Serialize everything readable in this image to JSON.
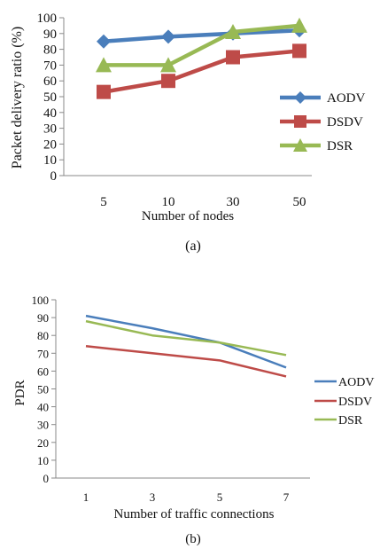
{
  "charts": [
    {
      "caption": "(a)",
      "chart_data": {
        "type": "line",
        "categories": [
          "5",
          "10",
          "30",
          "50"
        ],
        "series": [
          {
            "name": "AODV",
            "values": [
              85,
              88,
              90,
              92
            ],
            "color": "#4a7ebb",
            "marker": "diamond"
          },
          {
            "name": "DSDV",
            "values": [
              53,
              60,
              75,
              79
            ],
            "color": "#be4b48",
            "marker": "square"
          },
          {
            "name": "DSR",
            "values": [
              70,
              70,
              91,
              95
            ],
            "color": "#98b954",
            "marker": "triangle"
          }
        ],
        "title": "",
        "xlabel": "Number of nodes",
        "ylabel": "Packet delivery ratio (%)",
        "ylim": [
          0,
          100
        ],
        "yticks": [
          "0",
          "10",
          "20",
          "30",
          "40",
          "50",
          "60",
          "70",
          "80",
          "90",
          "100"
        ],
        "grid": false,
        "legend": "right"
      }
    },
    {
      "caption": "(b)",
      "chart_data": {
        "type": "line",
        "categories": [
          "1",
          "3",
          "5",
          "7"
        ],
        "series": [
          {
            "name": "AODV",
            "values": [
              91,
              84,
              76,
              62
            ],
            "color": "#4a7ebb"
          },
          {
            "name": "DSDV",
            "values": [
              74,
              70,
              66,
              57
            ],
            "color": "#be4b48"
          },
          {
            "name": "DSR",
            "values": [
              88,
              80,
              76,
              69
            ],
            "color": "#98b954"
          }
        ],
        "title": "",
        "xlabel": "Number of traffic connections",
        "ylabel": "PDR",
        "ylim": [
          0,
          100
        ],
        "yticks": [
          "0",
          "10",
          "20",
          "30",
          "40",
          "50",
          "60",
          "70",
          "80",
          "90",
          "100"
        ],
        "grid": false,
        "legend": "right"
      }
    }
  ]
}
